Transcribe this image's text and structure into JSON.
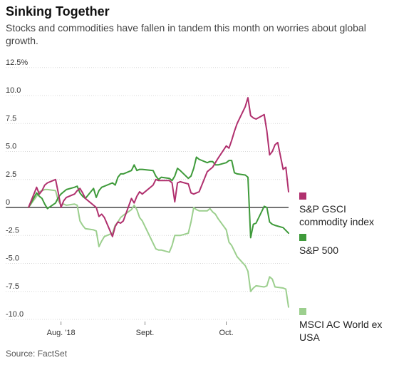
{
  "title": "Sinking Together",
  "subtitle": "Stocks and commodities have fallen in tandem this month on worries about global growth.",
  "source": "Source: FactSet",
  "chart_data": {
    "type": "line",
    "y_tick_labels": [
      "12.5%",
      "10.0",
      "7.5",
      "5.0",
      "2.5",
      "0",
      "-2.5",
      "-5.0",
      "-7.5",
      "-10.0"
    ],
    "y_ticks": [
      12.5,
      10.0,
      7.5,
      5.0,
      2.5,
      0,
      -2.5,
      -5.0,
      -7.5,
      -10.0
    ],
    "ylim": [
      -10.0,
      12.5
    ],
    "x_tick_labels": [
      "Aug. '18",
      "Sept.",
      "Oct."
    ],
    "x_ticks": [
      "2018-08-01",
      "2018-09-01",
      "2018-10-01"
    ],
    "xlim": [
      "2018-07-20",
      "2018-10-24"
    ],
    "grid": true,
    "legend_position": "right",
    "series": [
      {
        "name": "S&P GSCI commodity index",
        "color": "#b0306e",
        "points": [
          [
            "2018-07-20",
            0.0
          ],
          [
            "2018-07-23",
            1.8
          ],
          [
            "2018-07-24",
            1.2
          ],
          [
            "2018-07-25",
            1.5
          ],
          [
            "2018-07-26",
            2.0
          ],
          [
            "2018-07-27",
            2.2
          ],
          [
            "2018-07-30",
            2.5
          ],
          [
            "2018-07-31",
            1.3
          ],
          [
            "2018-08-01",
            0.0
          ],
          [
            "2018-08-02",
            0.6
          ],
          [
            "2018-08-03",
            0.9
          ],
          [
            "2018-08-06",
            1.2
          ],
          [
            "2018-08-07",
            1.5
          ],
          [
            "2018-08-08",
            1.7
          ],
          [
            "2018-08-09",
            1.3
          ],
          [
            "2018-08-10",
            0.8
          ],
          [
            "2018-08-13",
            0.2
          ],
          [
            "2018-08-14",
            0.0
          ],
          [
            "2018-08-15",
            -0.8
          ],
          [
            "2018-08-16",
            -0.6
          ],
          [
            "2018-08-17",
            -0.9
          ],
          [
            "2018-08-20",
            -2.6
          ],
          [
            "2018-08-21",
            -1.7
          ],
          [
            "2018-08-22",
            -1.3
          ],
          [
            "2018-08-23",
            -1.4
          ],
          [
            "2018-08-24",
            -1.2
          ],
          [
            "2018-08-27",
            0.8
          ],
          [
            "2018-08-28",
            0.4
          ],
          [
            "2018-08-29",
            1.0
          ],
          [
            "2018-08-30",
            1.4
          ],
          [
            "2018-08-31",
            1.2
          ],
          [
            "2018-09-04",
            2.0
          ],
          [
            "2018-09-05",
            2.5
          ],
          [
            "2018-09-06",
            2.4
          ],
          [
            "2018-09-07",
            2.4
          ],
          [
            "2018-09-10",
            2.4
          ],
          [
            "2018-09-11",
            2.2
          ],
          [
            "2018-09-12",
            0.5
          ],
          [
            "2018-09-13",
            2.2
          ],
          [
            "2018-09-14",
            2.3
          ],
          [
            "2018-09-17",
            2.1
          ],
          [
            "2018-09-18",
            1.3
          ],
          [
            "2018-09-19",
            1.2
          ],
          [
            "2018-09-20",
            1.3
          ],
          [
            "2018-09-21",
            1.4
          ],
          [
            "2018-09-24",
            3.2
          ],
          [
            "2018-09-25",
            3.4
          ],
          [
            "2018-09-26",
            3.6
          ],
          [
            "2018-09-27",
            4.0
          ],
          [
            "2018-09-28",
            4.4
          ],
          [
            "2018-10-01",
            5.5
          ],
          [
            "2018-10-02",
            5.3
          ],
          [
            "2018-10-03",
            6.0
          ],
          [
            "2018-10-04",
            6.8
          ],
          [
            "2018-10-05",
            7.5
          ],
          [
            "2018-10-08",
            9.0
          ],
          [
            "2018-10-09",
            9.8
          ],
          [
            "2018-10-10",
            8.2
          ],
          [
            "2018-10-11",
            8.0
          ],
          [
            "2018-10-12",
            7.9
          ],
          [
            "2018-10-15",
            8.3
          ],
          [
            "2018-10-16",
            6.8
          ],
          [
            "2018-10-17",
            4.7
          ],
          [
            "2018-10-18",
            5.0
          ],
          [
            "2018-10-19",
            5.6
          ],
          [
            "2018-10-20",
            5.8
          ],
          [
            "2018-10-22",
            3.4
          ],
          [
            "2018-10-23",
            3.6
          ],
          [
            "2018-10-24",
            1.4
          ]
        ]
      },
      {
        "name": "S&P 500",
        "color": "#3e9a3a",
        "points": [
          [
            "2018-07-20",
            0.0
          ],
          [
            "2018-07-23",
            1.3
          ],
          [
            "2018-07-24",
            1.0
          ],
          [
            "2018-07-25",
            0.8
          ],
          [
            "2018-07-26",
            0.3
          ],
          [
            "2018-07-27",
            -0.1
          ],
          [
            "2018-07-30",
            0.4
          ],
          [
            "2018-07-31",
            0.9
          ],
          [
            "2018-08-01",
            1.2
          ],
          [
            "2018-08-02",
            1.4
          ],
          [
            "2018-08-03",
            1.6
          ],
          [
            "2018-08-06",
            1.8
          ],
          [
            "2018-08-07",
            1.9
          ],
          [
            "2018-08-08",
            1.3
          ],
          [
            "2018-08-09",
            1.0
          ],
          [
            "2018-08-10",
            0.8
          ],
          [
            "2018-08-13",
            1.7
          ],
          [
            "2018-08-14",
            0.9
          ],
          [
            "2018-08-15",
            1.5
          ],
          [
            "2018-08-16",
            1.8
          ],
          [
            "2018-08-17",
            1.9
          ],
          [
            "2018-08-20",
            2.2
          ],
          [
            "2018-08-21",
            2.0
          ],
          [
            "2018-08-22",
            2.7
          ],
          [
            "2018-08-23",
            3.0
          ],
          [
            "2018-08-24",
            3.0
          ],
          [
            "2018-08-27",
            3.3
          ],
          [
            "2018-08-28",
            3.8
          ],
          [
            "2018-08-29",
            3.3
          ],
          [
            "2018-08-30",
            3.4
          ],
          [
            "2018-08-31",
            3.4
          ],
          [
            "2018-09-04",
            3.3
          ],
          [
            "2018-09-05",
            2.8
          ],
          [
            "2018-09-06",
            2.5
          ],
          [
            "2018-09-07",
            2.7
          ],
          [
            "2018-09-10",
            2.6
          ],
          [
            "2018-09-11",
            2.4
          ],
          [
            "2018-09-12",
            2.8
          ],
          [
            "2018-09-13",
            3.5
          ],
          [
            "2018-09-14",
            3.3
          ],
          [
            "2018-09-17",
            2.6
          ],
          [
            "2018-09-18",
            2.8
          ],
          [
            "2018-09-19",
            3.5
          ],
          [
            "2018-09-20",
            4.5
          ],
          [
            "2018-09-21",
            4.3
          ],
          [
            "2018-09-24",
            4.0
          ],
          [
            "2018-09-25",
            4.1
          ],
          [
            "2018-09-26",
            4.1
          ],
          [
            "2018-09-27",
            3.8
          ],
          [
            "2018-09-28",
            3.8
          ],
          [
            "2018-10-01",
            4.0
          ],
          [
            "2018-10-02",
            4.2
          ],
          [
            "2018-10-03",
            4.2
          ],
          [
            "2018-10-04",
            3.1
          ],
          [
            "2018-10-05",
            3.0
          ],
          [
            "2018-10-08",
            2.9
          ],
          [
            "2018-10-09",
            2.7
          ],
          [
            "2018-10-10",
            -2.7
          ],
          [
            "2018-10-11",
            -1.5
          ],
          [
            "2018-10-12",
            -1.4
          ],
          [
            "2018-10-15",
            0.1
          ],
          [
            "2018-10-16",
            0.0
          ],
          [
            "2018-10-17",
            -1.3
          ],
          [
            "2018-10-18",
            -1.5
          ],
          [
            "2018-10-19",
            -1.6
          ],
          [
            "2018-10-22",
            -1.8
          ],
          [
            "2018-10-24",
            -2.3
          ]
        ]
      },
      {
        "name": "MSCI AC World ex USA",
        "color": "#9ccf8e",
        "points": [
          [
            "2018-07-20",
            0.0
          ],
          [
            "2018-07-23",
            1.0
          ],
          [
            "2018-07-24",
            1.4
          ],
          [
            "2018-07-25",
            1.5
          ],
          [
            "2018-07-26",
            1.6
          ],
          [
            "2018-07-27",
            1.6
          ],
          [
            "2018-07-30",
            1.5
          ],
          [
            "2018-07-31",
            0.6
          ],
          [
            "2018-08-01",
            0.2
          ],
          [
            "2018-08-02",
            0.3
          ],
          [
            "2018-08-03",
            0.2
          ],
          [
            "2018-08-06",
            0.3
          ],
          [
            "2018-08-07",
            0.2
          ],
          [
            "2018-08-08",
            -1.2
          ],
          [
            "2018-08-09",
            -1.6
          ],
          [
            "2018-08-10",
            -1.9
          ],
          [
            "2018-08-13",
            -2.0
          ],
          [
            "2018-08-14",
            -2.1
          ],
          [
            "2018-08-15",
            -3.5
          ],
          [
            "2018-08-16",
            -3.0
          ],
          [
            "2018-08-17",
            -2.6
          ],
          [
            "2018-08-20",
            -2.3
          ],
          [
            "2018-08-21",
            -1.6
          ],
          [
            "2018-08-22",
            -1.3
          ],
          [
            "2018-08-23",
            -0.9
          ],
          [
            "2018-08-24",
            -0.7
          ],
          [
            "2018-08-27",
            -0.2
          ],
          [
            "2018-08-28",
            0.2
          ],
          [
            "2018-08-29",
            -0.2
          ],
          [
            "2018-08-30",
            -0.9
          ],
          [
            "2018-08-31",
            -1.2
          ],
          [
            "2018-09-04",
            -3.2
          ],
          [
            "2018-09-05",
            -3.7
          ],
          [
            "2018-09-06",
            -3.8
          ],
          [
            "2018-09-07",
            -3.8
          ],
          [
            "2018-09-10",
            -4.0
          ],
          [
            "2018-09-11",
            -3.4
          ],
          [
            "2018-09-12",
            -2.5
          ],
          [
            "2018-09-13",
            -2.5
          ],
          [
            "2018-09-14",
            -2.5
          ],
          [
            "2018-09-17",
            -2.3
          ],
          [
            "2018-09-18",
            -1.3
          ],
          [
            "2018-09-19",
            0.0
          ],
          [
            "2018-09-20",
            -0.2
          ],
          [
            "2018-09-21",
            -0.3
          ],
          [
            "2018-09-24",
            -0.3
          ],
          [
            "2018-09-25",
            -0.1
          ],
          [
            "2018-09-26",
            -0.4
          ],
          [
            "2018-09-27",
            -0.6
          ],
          [
            "2018-09-28",
            -1.0
          ],
          [
            "2018-10-01",
            -2.0
          ],
          [
            "2018-10-02",
            -3.1
          ],
          [
            "2018-10-03",
            -3.4
          ],
          [
            "2018-10-04",
            -3.9
          ],
          [
            "2018-10-05",
            -4.4
          ],
          [
            "2018-10-08",
            -5.2
          ],
          [
            "2018-10-09",
            -5.7
          ],
          [
            "2018-10-10",
            -7.5
          ],
          [
            "2018-10-11",
            -7.2
          ],
          [
            "2018-10-12",
            -7.0
          ],
          [
            "2018-10-15",
            -7.1
          ],
          [
            "2018-10-16",
            -7.0
          ],
          [
            "2018-10-17",
            -6.2
          ],
          [
            "2018-10-18",
            -6.4
          ],
          [
            "2018-10-19",
            -7.1
          ],
          [
            "2018-10-22",
            -7.2
          ],
          [
            "2018-10-23",
            -7.3
          ],
          [
            "2018-10-24",
            -8.9
          ]
        ]
      }
    ]
  },
  "legend": [
    {
      "label": "S&P GSCI commodity index",
      "color": "#b0306e"
    },
    {
      "label": "S&P 500",
      "color": "#3e9a3a"
    },
    {
      "label": "MSCI AC World ex USA",
      "color": "#9ccf8e"
    }
  ]
}
